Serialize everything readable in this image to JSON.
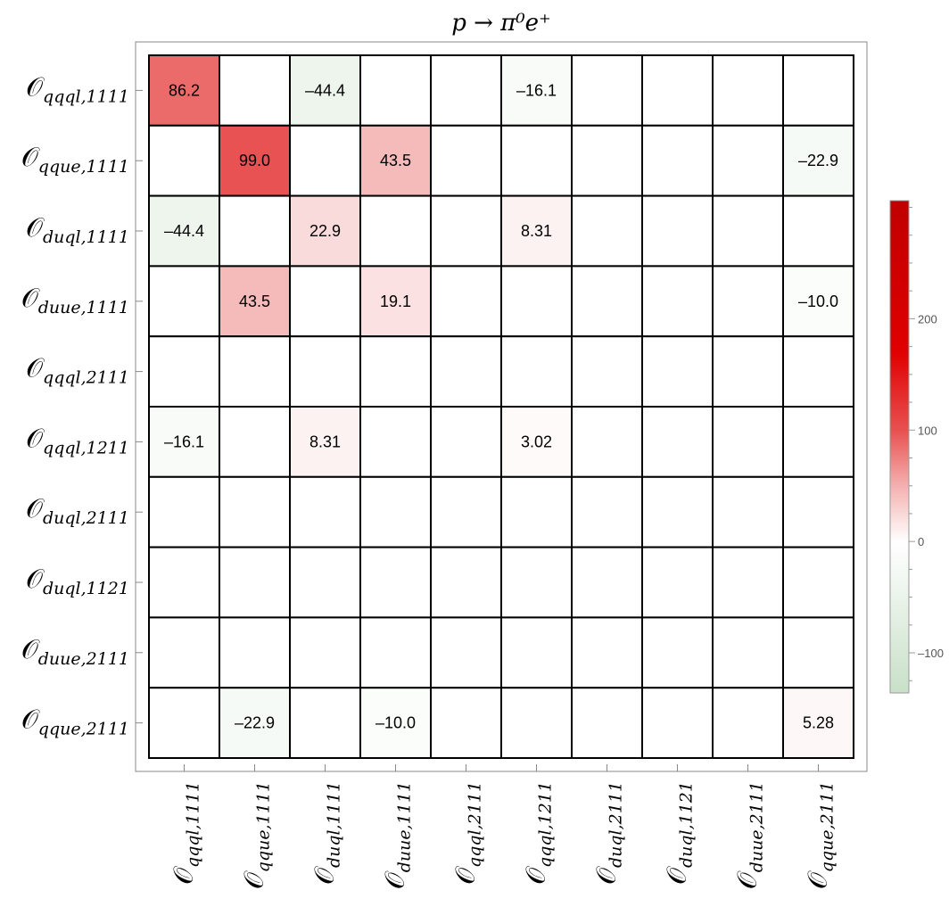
{
  "chart_data": {
    "type": "heatmap",
    "title": "p → π⁰e⁺",
    "row_labels": [
      "𝒪_{qqql,1111}",
      "𝒪_{qque,1111}",
      "𝒪_{duql,1111}",
      "𝒪_{duue,1111}",
      "𝒪_{qqql,2111}",
      "𝒪_{qqql,1211}",
      "𝒪_{duql,2111}",
      "𝒪_{duql,1121}",
      "𝒪_{duue,2111}",
      "𝒪_{qque,2111}"
    ],
    "col_labels": [
      "𝒪_{qqql,1111}",
      "𝒪_{qque,1111}",
      "𝒪_{duql,1111}",
      "𝒪_{duue,1111}",
      "𝒪_{qqql,2111}",
      "𝒪_{qqql,1211}",
      "𝒪_{duql,2111}",
      "𝒪_{duql,1121}",
      "𝒪_{duue,2111}",
      "𝒪_{qque,2111}"
    ],
    "values": [
      [
        86.2,
        null,
        -44.4,
        null,
        null,
        -16.1,
        null,
        null,
        null,
        null
      ],
      [
        null,
        99.0,
        null,
        43.5,
        null,
        null,
        null,
        null,
        null,
        -22.9
      ],
      [
        -44.4,
        null,
        22.9,
        null,
        null,
        8.31,
        null,
        null,
        null,
        null
      ],
      [
        null,
        43.5,
        null,
        19.1,
        null,
        null,
        null,
        null,
        null,
        -10.0
      ],
      [
        null,
        null,
        null,
        null,
        null,
        null,
        null,
        null,
        null,
        null
      ],
      [
        -16.1,
        null,
        8.31,
        null,
        null,
        3.02,
        null,
        null,
        null,
        null
      ],
      [
        null,
        null,
        null,
        null,
        null,
        null,
        null,
        null,
        null,
        null
      ],
      [
        null,
        null,
        null,
        null,
        null,
        null,
        null,
        null,
        null,
        null
      ],
      [
        null,
        null,
        null,
        null,
        null,
        null,
        null,
        null,
        null,
        null
      ],
      [
        null,
        -22.9,
        null,
        -10.0,
        null,
        null,
        null,
        null,
        null,
        5.28
      ]
    ],
    "colorbar": {
      "range": [
        -136,
        306
      ],
      "ticks": [
        -100,
        0,
        100,
        200
      ],
      "minor_step": 25,
      "stops": [
        [
          -136,
          "#c8e0c8"
        ],
        [
          0,
          "#ffffff"
        ],
        [
          50,
          "#f4b0b0"
        ],
        [
          100,
          "#e85050"
        ],
        [
          170,
          "#e00000"
        ],
        [
          306,
          "#c00000"
        ]
      ]
    },
    "grid": true
  }
}
